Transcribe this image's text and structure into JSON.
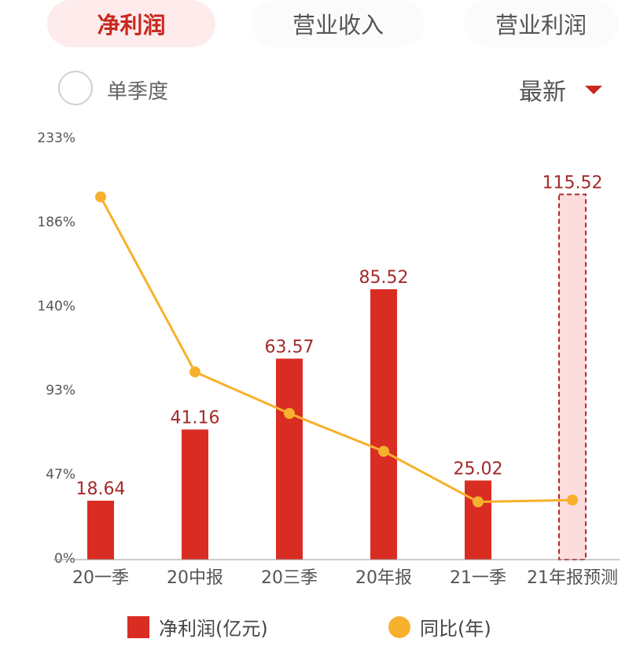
{
  "tabs": [
    {
      "label": "净利润",
      "active": true
    },
    {
      "label": "营业收入",
      "active": false
    },
    {
      "label": "营业利润",
      "active": false
    }
  ],
  "controls": {
    "single_quarter_label": "单季度",
    "sort_label": "最新"
  },
  "legend": {
    "bar_label": "净利润(亿元)",
    "line_label": "同比(年)"
  },
  "colors": {
    "bar": "#d92d24",
    "forecast_fill": "#fddcdc",
    "forecast_border": "#b02b2b",
    "line": "#f7b12c",
    "value_label": "#a52a2a",
    "axis_text": "#555555"
  },
  "chart_data": {
    "type": "bar",
    "categories": [
      "20一季",
      "20中报",
      "20三季",
      "20年报",
      "21一季",
      "21年报预测"
    ],
    "series": [
      {
        "name": "净利润(亿元)",
        "type": "bar",
        "axis": "left",
        "values": [
          18.64,
          41.16,
          63.57,
          85.52,
          25.02,
          115.52
        ],
        "labels": [
          "18.64",
          "41.16",
          "63.57",
          "85.52",
          "25.02",
          "115.52"
        ],
        "forecast": [
          false,
          false,
          false,
          false,
          false,
          true
        ]
      },
      {
        "name": "同比(年)",
        "type": "line",
        "axis": "right",
        "values": [
          201,
          104,
          81,
          60,
          32,
          33
        ]
      }
    ],
    "ylim_left": [
      0,
      133
    ],
    "ylim_right": [
      0,
      233
    ],
    "y_ticks": [
      "0%",
      "47%",
      "93%",
      "140%",
      "186%",
      "233%"
    ],
    "grid": false,
    "legend_position": "bottom"
  }
}
